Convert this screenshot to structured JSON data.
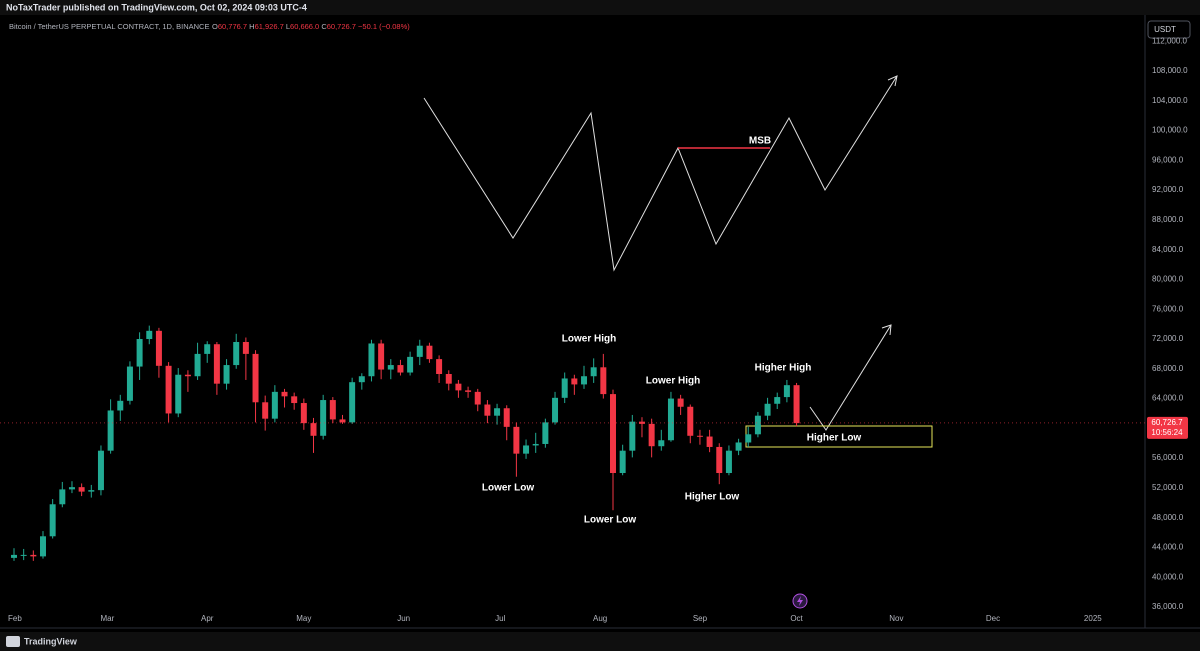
{
  "header": {
    "published": "NoTaxTrader published on TradingView.com, Oct 02, 2024 09:03 UTC-4",
    "symbol": "Bitcoin / TetherUS PERPETUAL CONTRACT, 1D, BINANCE",
    "ohlc": [
      {
        "key": "O",
        "value": "60,776.7"
      },
      {
        "key": "H",
        "value": "61,926.7"
      },
      {
        "key": "L",
        "value": "60,666.0"
      },
      {
        "key": "C",
        "value": "60,726.7"
      }
    ],
    "change": "−50.1 (−0.08%)"
  },
  "chart_data": {
    "type": "candlestick",
    "x": [
      0,
      3,
      6,
      9,
      12,
      15,
      18,
      21,
      24,
      27,
      30,
      33,
      36,
      39,
      42,
      45,
      48,
      51,
      54,
      57,
      60,
      63,
      66,
      69,
      72,
      75,
      78,
      81,
      84,
      87,
      90,
      93,
      96,
      99,
      102,
      105,
      108,
      111,
      114,
      117,
      120,
      123,
      126,
      129,
      132,
      135,
      138,
      141,
      144,
      147,
      150,
      153,
      156,
      159,
      162,
      165,
      168,
      171,
      174,
      177,
      180,
      183,
      186,
      189,
      192,
      195,
      198,
      201,
      204,
      207,
      210,
      213,
      216,
      219,
      222,
      225,
      228,
      231,
      234,
      237,
      240,
      243
    ],
    "open": [
      42600,
      43000,
      43000,
      42800,
      45500,
      49800,
      51800,
      52100,
      51500,
      51700,
      57000,
      62400,
      63700,
      68300,
      72000,
      73100,
      68400,
      62000,
      67200,
      67000,
      70000,
      71300,
      66000,
      68500,
      71600,
      70000,
      63500,
      61300,
      64900,
      64300,
      63400,
      60700,
      59000,
      63800,
      61200,
      60800,
      66200,
      67000,
      71400,
      67900,
      68500,
      67500,
      69600,
      71100,
      69300,
      67300,
      66000,
      65100,
      64900,
      63200,
      61700,
      62700,
      60200,
      56600,
      57700,
      57900,
      60800,
      64100,
      66700,
      65900,
      67000,
      68200,
      64600,
      54000,
      57000,
      60900,
      60600,
      57600,
      58400,
      64000,
      62900,
      59000,
      58900,
      57500,
      54000,
      57000,
      58100,
      59200,
      61700,
      63300,
      64200,
      65800
    ],
    "high": [
      43900,
      43800,
      43600,
      46200,
      50500,
      52800,
      52900,
      52600,
      52400,
      57700,
      63900,
      64500,
      69000,
      72900,
      73800,
      73500,
      68900,
      68100,
      67800,
      71500,
      71700,
      71600,
      69300,
      72700,
      72200,
      70500,
      64400,
      65800,
      65300,
      64800,
      64000,
      61400,
      64500,
      64200,
      61800,
      66800,
      67400,
      71900,
      71900,
      69300,
      69200,
      70300,
      71900,
      71500,
      69800,
      67800,
      66500,
      65600,
      65300,
      63800,
      63300,
      63100,
      60800,
      58500,
      59400,
      61300,
      64900,
      67500,
      67200,
      68400,
      69400,
      70000,
      65200,
      57800,
      61800,
      61500,
      61300,
      59800,
      64900,
      64500,
      63200,
      59800,
      59800,
      58000,
      57700,
      58600,
      60200,
      62200,
      64100,
      64800,
      66500,
      66100
    ],
    "low": [
      42200,
      42300,
      42200,
      42500,
      45200,
      49400,
      51300,
      50900,
      50700,
      51000,
      56600,
      61000,
      63200,
      66500,
      71300,
      66800,
      60800,
      61500,
      64900,
      66500,
      68800,
      64500,
      65200,
      68000,
      66500,
      60800,
      59700,
      60800,
      62800,
      62500,
      59800,
      56700,
      58500,
      60700,
      60600,
      60600,
      65200,
      66300,
      66600,
      66600,
      67100,
      67100,
      68500,
      68800,
      66100,
      65100,
      64100,
      64100,
      62300,
      60700,
      60500,
      58400,
      53500,
      55900,
      56700,
      57400,
      60500,
      63400,
      64500,
      65300,
      66100,
      64000,
      49000,
      53700,
      56100,
      58800,
      56100,
      57000,
      58200,
      61800,
      58000,
      57800,
      56800,
      52500,
      53700,
      56400,
      57500,
      58800,
      61100,
      62600,
      63500,
      60300
    ],
    "close": [
      43000,
      43000,
      42800,
      45500,
      49800,
      51800,
      52100,
      51500,
      51700,
      57000,
      62400,
      63700,
      68300,
      72000,
      73100,
      68400,
      62000,
      67200,
      67000,
      70000,
      71300,
      66000,
      68500,
      71600,
      70000,
      63500,
      61300,
      64900,
      64300,
      63400,
      60700,
      59000,
      63800,
      61200,
      60800,
      66200,
      67000,
      71400,
      67900,
      68500,
      67500,
      69600,
      71100,
      69300,
      67300,
      66000,
      65100,
      64900,
      63200,
      61700,
      62700,
      60200,
      56600,
      57700,
      57900,
      60800,
      64100,
      66700,
      65900,
      67000,
      68200,
      64600,
      54000,
      57000,
      60900,
      60600,
      57600,
      58400,
      64000,
      62900,
      59000,
      58900,
      57500,
      54000,
      57000,
      58100,
      59200,
      61700,
      63300,
      64200,
      65800,
      60700
    ],
    "up_color": "#22ab94",
    "down_color": "#f23645",
    "xlim": [
      -4.35,
      351.2
    ],
    "xticks": [
      {
        "value": 0,
        "label": "Feb"
      },
      {
        "value": 29,
        "label": "Mar"
      },
      {
        "value": 60,
        "label": "Apr"
      },
      {
        "value": 90,
        "label": "May"
      },
      {
        "value": 121,
        "label": "Jun"
      },
      {
        "value": 151,
        "label": "Jul"
      },
      {
        "value": 182,
        "label": "Aug"
      },
      {
        "value": 213,
        "label": "Sep"
      },
      {
        "value": 243,
        "label": "Oct"
      },
      {
        "value": 274,
        "label": "Nov"
      },
      {
        "value": 304,
        "label": "Dec"
      },
      {
        "value": 335,
        "label": "2025"
      }
    ],
    "ylim": [
      33180,
      117540
    ],
    "yticks": [
      {
        "value": 36000,
        "label": "36,000.0"
      },
      {
        "value": 40000,
        "label": "40,000.0"
      },
      {
        "value": 44000,
        "label": "44,000.0"
      },
      {
        "value": 48000,
        "label": "48,000.0"
      },
      {
        "value": 52000,
        "label": "52,000.0"
      },
      {
        "value": 56000,
        "label": "56,000.0"
      },
      {
        "value": 60000,
        "label": "60,000.0"
      },
      {
        "value": 64000,
        "label": "64,000.0"
      },
      {
        "value": 68000,
        "label": "68,000.0"
      },
      {
        "value": 72000,
        "label": "72,000.0"
      },
      {
        "value": 76000,
        "label": "76,000.0"
      },
      {
        "value": 80000,
        "label": "80,000.0"
      },
      {
        "value": 84000,
        "label": "84,000.0"
      },
      {
        "value": 88000,
        "label": "88,000.0"
      },
      {
        "value": 92000,
        "label": "92,000.0"
      },
      {
        "value": 96000,
        "label": "96,000.0"
      },
      {
        "value": 100000,
        "label": "100,000.0"
      },
      {
        "value": 104000,
        "label": "104,000.0"
      },
      {
        "value": 108000,
        "label": "108,000.0"
      },
      {
        "value": 112000,
        "label": "112,000.0"
      }
    ],
    "grid": false,
    "currency": "USDT",
    "last_price": {
      "value": 60726.7,
      "label": "60,726.7"
    },
    "countdown": "10:56:24",
    "annotations": [
      "MSB",
      "Lower High",
      "Lower High",
      "Higher High",
      "Lower Low",
      "Lower Low",
      "Higher Low",
      "Higher Low"
    ]
  },
  "footer": {
    "brand": "TradingView"
  }
}
